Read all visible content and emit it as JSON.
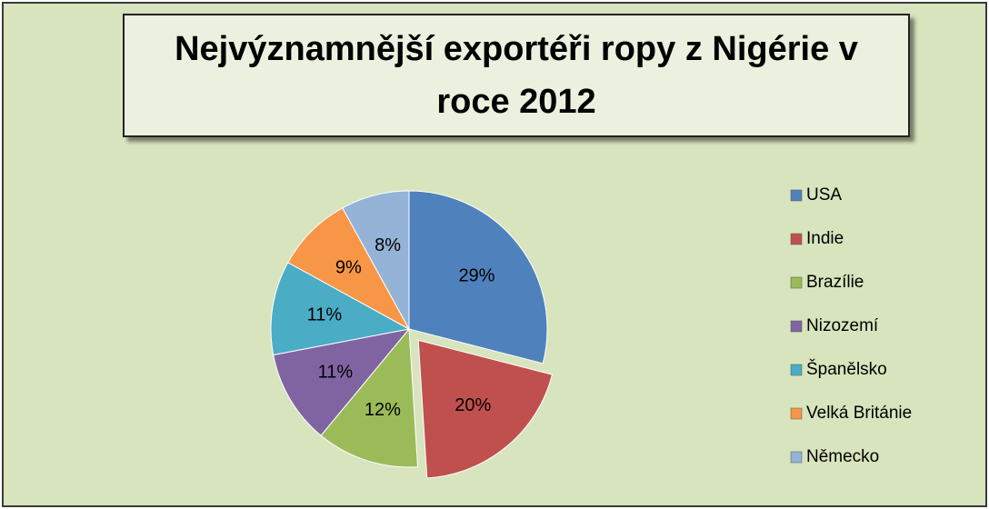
{
  "chart_data": {
    "type": "pie",
    "title": "Nejvýznamnější exportéři ropy z Nigérie v roce 2012",
    "categories": [
      "USA",
      "Indie",
      "Brazílie",
      "Nizozemí",
      "Španělsko",
      "Velká Británie",
      "Německo"
    ],
    "values": [
      29,
      20,
      12,
      11,
      11,
      9,
      8
    ],
    "value_labels": [
      "29%",
      "20%",
      "12%",
      "11%",
      "11%",
      "9%",
      "8%"
    ],
    "colors": [
      "#4f81bd",
      "#c0504d",
      "#9bbb59",
      "#8064a2",
      "#4bacc6",
      "#f79646",
      "#95b3d7"
    ],
    "exploded": "Indie",
    "legend": "right"
  }
}
